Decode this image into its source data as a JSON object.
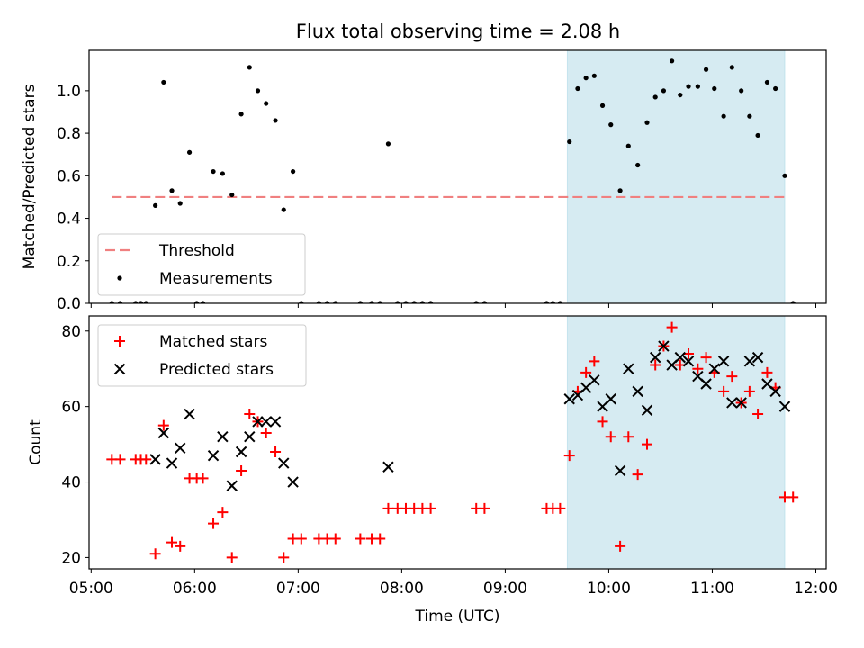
{
  "figure": {
    "title": "Flux total observing time = 2.08 h"
  },
  "chart_data": [
    {
      "type": "scatter",
      "panel": "top",
      "ylabel": "Matched/Predicted stars",
      "xlabel": "",
      "x_unit": "hours UTC",
      "xlim": [
        4.98,
        12.1
      ],
      "ylim": [
        0.0,
        1.19
      ],
      "yticks": [
        0.0,
        0.2,
        0.4,
        0.6,
        0.8,
        1.0
      ],
      "ytick_labels": [
        "0.0",
        "0.2",
        "0.4",
        "0.6",
        "0.8",
        "1.0"
      ],
      "xticks": [
        5,
        6,
        7,
        8,
        9,
        10,
        11,
        12
      ],
      "shaded_interval": {
        "x0": 9.6,
        "x1": 11.7,
        "color": "#add8e6"
      },
      "legend": {
        "placement": "lower-left",
        "entries": [
          "Threshold",
          "Measurements"
        ]
      },
      "threshold": {
        "name": "Threshold",
        "y": 0.5,
        "x0": 5.2,
        "x1": 11.7,
        "color": "#f08080",
        "style": "dashed"
      },
      "series": [
        {
          "name": "Measurements",
          "color": "#000000",
          "marker": "dot",
          "points": [
            [
              5.2,
              0.0
            ],
            [
              5.28,
              0.0
            ],
            [
              5.43,
              0.0
            ],
            [
              5.48,
              0.0
            ],
            [
              5.53,
              0.0
            ],
            [
              5.62,
              0.46
            ],
            [
              5.7,
              1.04
            ],
            [
              5.78,
              0.53
            ],
            [
              5.86,
              0.47
            ],
            [
              5.95,
              0.71
            ],
            [
              6.02,
              0.0
            ],
            [
              6.08,
              0.0
            ],
            [
              6.18,
              0.62
            ],
            [
              6.27,
              0.61
            ],
            [
              6.36,
              0.51
            ],
            [
              6.45,
              0.89
            ],
            [
              6.53,
              1.11
            ],
            [
              6.61,
              1.0
            ],
            [
              6.69,
              0.94
            ],
            [
              6.78,
              0.86
            ],
            [
              6.86,
              0.44
            ],
            [
              6.95,
              0.62
            ],
            [
              7.03,
              0.0
            ],
            [
              7.2,
              0.0
            ],
            [
              7.28,
              0.0
            ],
            [
              7.36,
              0.0
            ],
            [
              7.6,
              0.0
            ],
            [
              7.71,
              0.0
            ],
            [
              7.79,
              0.0
            ],
            [
              7.87,
              0.75
            ],
            [
              7.96,
              0.0
            ],
            [
              8.04,
              0.0
            ],
            [
              8.12,
              0.0
            ],
            [
              8.2,
              0.0
            ],
            [
              8.28,
              0.0
            ],
            [
              8.72,
              0.0
            ],
            [
              8.8,
              0.0
            ],
            [
              9.4,
              0.0
            ],
            [
              9.46,
              0.0
            ],
            [
              9.53,
              0.0
            ],
            [
              9.62,
              0.76
            ],
            [
              9.7,
              1.01
            ],
            [
              9.78,
              1.06
            ],
            [
              9.86,
              1.07
            ],
            [
              9.94,
              0.93
            ],
            [
              10.02,
              0.84
            ],
            [
              10.11,
              0.53
            ],
            [
              10.19,
              0.74
            ],
            [
              10.28,
              0.65
            ],
            [
              10.37,
              0.85
            ],
            [
              10.45,
              0.97
            ],
            [
              10.53,
              1.0
            ],
            [
              10.61,
              1.14
            ],
            [
              10.69,
              0.98
            ],
            [
              10.77,
              1.02
            ],
            [
              10.86,
              1.02
            ],
            [
              10.94,
              1.1
            ],
            [
              11.02,
              1.01
            ],
            [
              11.11,
              0.88
            ],
            [
              11.19,
              1.11
            ],
            [
              11.28,
              1.0
            ],
            [
              11.36,
              0.88
            ],
            [
              11.44,
              0.79
            ],
            [
              11.53,
              1.04
            ],
            [
              11.61,
              1.01
            ],
            [
              11.7,
              0.6
            ],
            [
              11.78,
              0.0
            ]
          ]
        }
      ]
    },
    {
      "type": "scatter",
      "panel": "bottom",
      "xlabel": "Time (UTC)",
      "ylabel": "Count",
      "x_unit": "hours UTC",
      "xlim": [
        4.98,
        12.1
      ],
      "ylim": [
        17,
        84
      ],
      "yticks": [
        20,
        40,
        60,
        80
      ],
      "ytick_labels": [
        "20",
        "40",
        "60",
        "80"
      ],
      "xticks": [
        5,
        6,
        7,
        8,
        9,
        10,
        11,
        12
      ],
      "xtick_labels": [
        "05:00",
        "06:00",
        "07:00",
        "08:00",
        "09:00",
        "10:00",
        "11:00",
        "12:00"
      ],
      "shaded_interval": {
        "x0": 9.6,
        "x1": 11.7,
        "color": "#add8e6"
      },
      "legend": {
        "placement": "upper-left",
        "entries": [
          "Matched stars",
          "Predicted stars"
        ]
      },
      "series": [
        {
          "name": "Matched stars",
          "color": "#ff0000",
          "marker": "plus",
          "points": [
            [
              5.2,
              46
            ],
            [
              5.28,
              46
            ],
            [
              5.43,
              46
            ],
            [
              5.48,
              46
            ],
            [
              5.53,
              46
            ],
            [
              5.62,
              21
            ],
            [
              5.7,
              55
            ],
            [
              5.78,
              24
            ],
            [
              5.86,
              23
            ],
            [
              5.95,
              41
            ],
            [
              6.02,
              41
            ],
            [
              6.08,
              41
            ],
            [
              6.18,
              29
            ],
            [
              6.27,
              32
            ],
            [
              6.36,
              20
            ],
            [
              6.45,
              43
            ],
            [
              6.53,
              58
            ],
            [
              6.61,
              56
            ],
            [
              6.69,
              53
            ],
            [
              6.78,
              48
            ],
            [
              6.86,
              20
            ],
            [
              6.95,
              25
            ],
            [
              7.03,
              25
            ],
            [
              7.2,
              25
            ],
            [
              7.28,
              25
            ],
            [
              7.36,
              25
            ],
            [
              7.6,
              25
            ],
            [
              7.71,
              25
            ],
            [
              7.79,
              25
            ],
            [
              7.87,
              33
            ],
            [
              7.96,
              33
            ],
            [
              8.04,
              33
            ],
            [
              8.12,
              33
            ],
            [
              8.2,
              33
            ],
            [
              8.28,
              33
            ],
            [
              8.72,
              33
            ],
            [
              8.8,
              33
            ],
            [
              9.4,
              33
            ],
            [
              9.46,
              33
            ],
            [
              9.53,
              33
            ],
            [
              9.62,
              47
            ],
            [
              9.7,
              64
            ],
            [
              9.78,
              69
            ],
            [
              9.86,
              72
            ],
            [
              9.94,
              56
            ],
            [
              10.02,
              52
            ],
            [
              10.11,
              23
            ],
            [
              10.19,
              52
            ],
            [
              10.28,
              42
            ],
            [
              10.37,
              50
            ],
            [
              10.45,
              71
            ],
            [
              10.53,
              76
            ],
            [
              10.61,
              81
            ],
            [
              10.69,
              71
            ],
            [
              10.77,
              74
            ],
            [
              10.86,
              70
            ],
            [
              10.94,
              73
            ],
            [
              11.02,
              69
            ],
            [
              11.11,
              64
            ],
            [
              11.19,
              68
            ],
            [
              11.28,
              61
            ],
            [
              11.36,
              64
            ],
            [
              11.44,
              58
            ],
            [
              11.53,
              69
            ],
            [
              11.61,
              65
            ],
            [
              11.7,
              36
            ],
            [
              11.78,
              36
            ]
          ]
        },
        {
          "name": "Predicted stars",
          "color": "#000000",
          "marker": "x",
          "points": [
            [
              5.62,
              46
            ],
            [
              5.7,
              53
            ],
            [
              5.78,
              45
            ],
            [
              5.86,
              49
            ],
            [
              5.95,
              58
            ],
            [
              6.18,
              47
            ],
            [
              6.27,
              52
            ],
            [
              6.36,
              39
            ],
            [
              6.45,
              48
            ],
            [
              6.53,
              52
            ],
            [
              6.61,
              56
            ],
            [
              6.69,
              56
            ],
            [
              6.78,
              56
            ],
            [
              6.86,
              45
            ],
            [
              6.95,
              40
            ],
            [
              7.87,
              44
            ],
            [
              9.62,
              62
            ],
            [
              9.7,
              63
            ],
            [
              9.78,
              65
            ],
            [
              9.86,
              67
            ],
            [
              9.94,
              60
            ],
            [
              10.02,
              62
            ],
            [
              10.11,
              43
            ],
            [
              10.19,
              70
            ],
            [
              10.28,
              64
            ],
            [
              10.37,
              59
            ],
            [
              10.45,
              73
            ],
            [
              10.53,
              76
            ],
            [
              10.61,
              71
            ],
            [
              10.69,
              73
            ],
            [
              10.77,
              72
            ],
            [
              10.86,
              68
            ],
            [
              10.94,
              66
            ],
            [
              11.02,
              70
            ],
            [
              11.11,
              72
            ],
            [
              11.19,
              61
            ],
            [
              11.28,
              61
            ],
            [
              11.36,
              72
            ],
            [
              11.44,
              73
            ],
            [
              11.53,
              66
            ],
            [
              11.61,
              64
            ],
            [
              11.7,
              60
            ]
          ]
        }
      ]
    }
  ]
}
